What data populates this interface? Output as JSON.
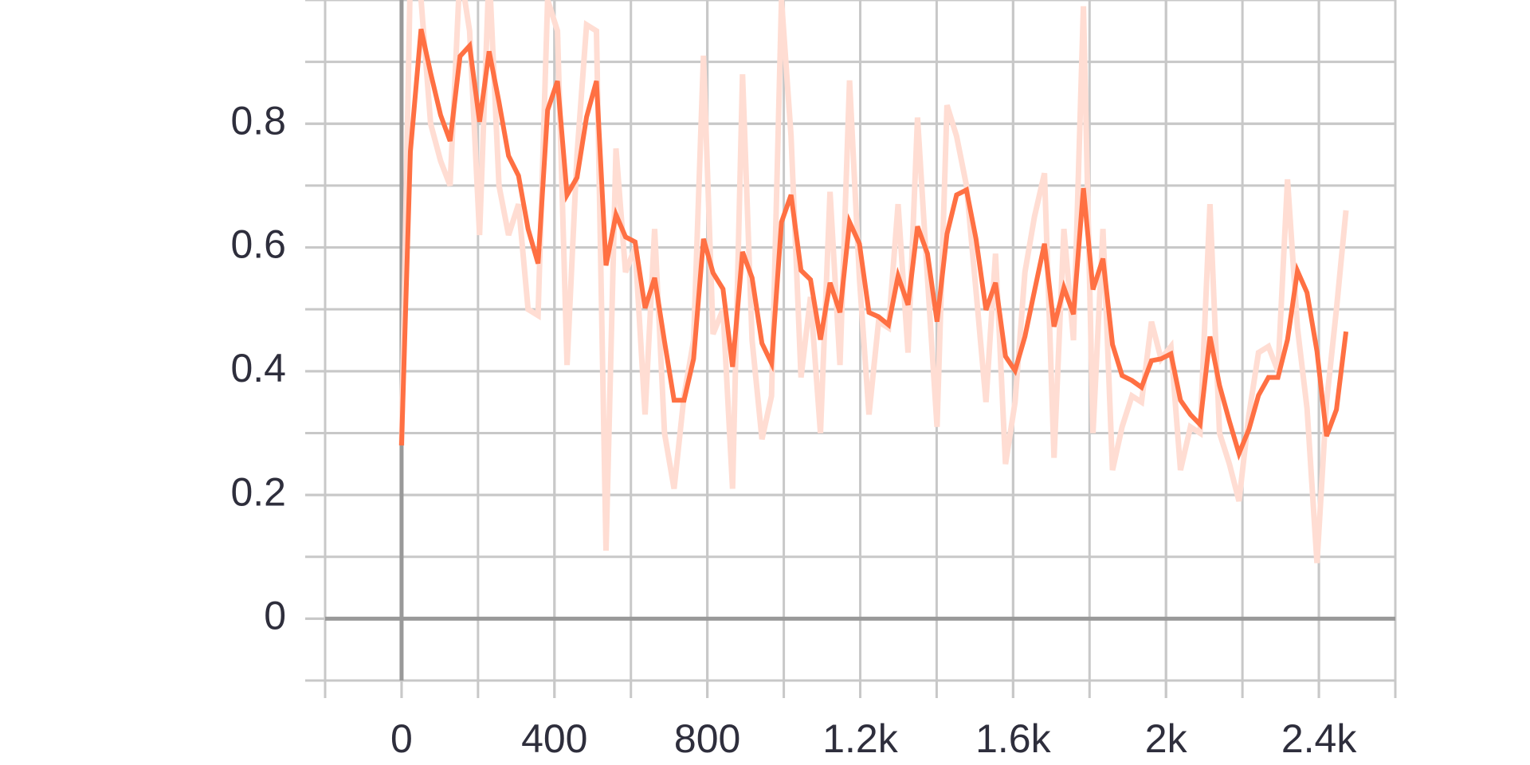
{
  "chart_data": {
    "type": "line",
    "x": [
      0,
      23,
      51,
      76,
      102,
      127,
      153,
      178,
      204,
      229,
      255,
      280,
      306,
      331,
      357,
      382,
      408,
      433,
      459,
      484,
      510,
      535,
      561,
      586,
      611,
      637,
      662,
      688,
      713,
      739,
      764,
      790,
      815,
      841,
      866,
      892,
      917,
      943,
      968,
      994,
      1019,
      1045,
      1070,
      1096,
      1121,
      1147,
      1172,
      1198,
      1223,
      1248,
      1274,
      1299,
      1325,
      1350,
      1376,
      1401,
      1427,
      1452,
      1478,
      1503,
      1529,
      1554,
      1580,
      1605,
      1631,
      1656,
      1682,
      1707,
      1733,
      1758,
      1784,
      1809,
      1835,
      1860,
      1885,
      1911,
      1936,
      1962,
      1987,
      2013,
      2038,
      2064,
      2089,
      2115,
      2140,
      2166,
      2191,
      2217,
      2242,
      2268,
      2293,
      2318,
      2344,
      2369,
      2395,
      2420,
      2446,
      2471
    ],
    "series": [
      {
        "color": "#ffddd3",
        "values": [
          0.28,
          1.05,
          1.0,
          0.8,
          0.74,
          0.7,
          1.05,
          0.95,
          0.62,
          1.05,
          0.7,
          0.62,
          0.67,
          0.5,
          0.49,
          1.0,
          0.95,
          0.41,
          0.75,
          0.96,
          0.95,
          0.11,
          0.76,
          0.56,
          0.6,
          0.33,
          0.63,
          0.3,
          0.21,
          0.36,
          0.45,
          0.91,
          0.46,
          0.5,
          0.21,
          0.88,
          0.45,
          0.29,
          0.36,
          1.0,
          0.78,
          0.39,
          0.52,
          0.3,
          0.69,
          0.41,
          0.87,
          0.55,
          0.33,
          0.48,
          0.47,
          0.67,
          0.43,
          0.81,
          0.55,
          0.31,
          0.83,
          0.78,
          0.7,
          0.53,
          0.35,
          0.59,
          0.25,
          0.35,
          0.56,
          0.65,
          0.72,
          0.26,
          0.63,
          0.45,
          0.99,
          0.3,
          0.63,
          0.24,
          0.31,
          0.36,
          0.35,
          0.48,
          0.42,
          0.44,
          0.24,
          0.31,
          0.3,
          0.67,
          0.3,
          0.25,
          0.19,
          0.33,
          0.43,
          0.44,
          0.4,
          0.71,
          0.47,
          0.34,
          0.09,
          0.35,
          0.5,
          0.66
        ]
      },
      {
        "color": "#ff7043",
        "values": [
          0.28,
          0.755,
          0.953,
          0.882,
          0.814,
          0.772,
          0.909,
          0.926,
          0.803,
          0.917,
          0.835,
          0.748,
          0.716,
          0.63,
          0.574,
          0.822,
          0.869,
          0.685,
          0.713,
          0.811,
          0.869,
          0.571,
          0.653,
          0.617,
          0.609,
          0.502,
          0.551,
          0.448,
          0.353,
          0.353,
          0.42,
          0.614,
          0.559,
          0.533,
          0.407,
          0.593,
          0.551,
          0.445,
          0.413,
          0.641,
          0.685,
          0.563,
          0.548,
          0.451,
          0.543,
          0.495,
          0.641,
          0.606,
          0.495,
          0.488,
          0.475,
          0.554,
          0.507,
          0.634,
          0.59,
          0.48,
          0.622,
          0.685,
          0.693,
          0.614,
          0.499,
          0.543,
          0.424,
          0.401,
          0.456,
          0.53,
          0.606,
          0.472,
          0.535,
          0.492,
          0.696,
          0.532,
          0.582,
          0.443,
          0.393,
          0.385,
          0.374,
          0.417,
          0.42,
          0.428,
          0.353,
          0.33,
          0.314,
          0.456,
          0.377,
          0.319,
          0.267,
          0.306,
          0.361,
          0.39,
          0.39,
          0.451,
          0.562,
          0.527,
          0.432,
          0.295,
          0.338,
          0.464
        ]
      }
    ],
    "xlim": [
      -200,
      2600
    ],
    "ylim": [
      -0.1,
      1.0
    ],
    "xticks": [
      0,
      400,
      800,
      {
        "value": 1200,
        "label": "1.2k"
      },
      {
        "value": 1600,
        "label": "1.6k"
      },
      {
        "value": 2000,
        "label": "2k"
      },
      {
        "value": 2400,
        "label": "2.4k"
      }
    ],
    "yticks": [
      0,
      0.2,
      0.4,
      0.6,
      0.8
    ],
    "grid": true
  }
}
